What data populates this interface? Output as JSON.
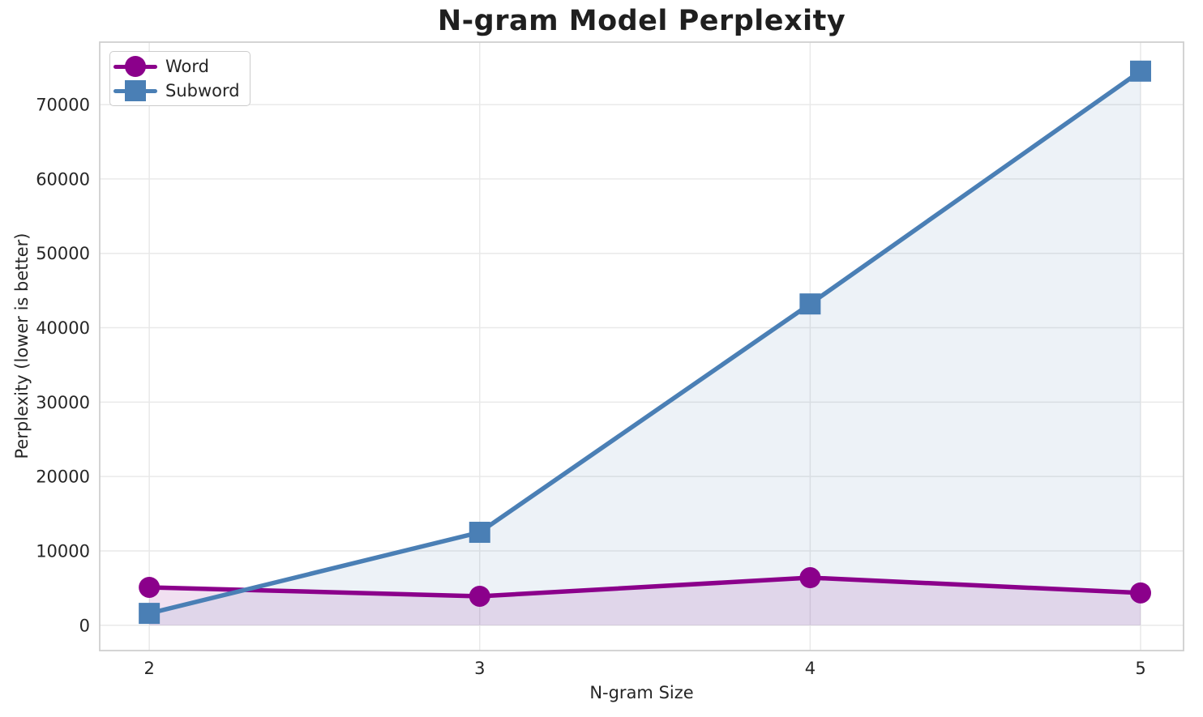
{
  "chart_data": {
    "type": "line",
    "title": "N-gram Model Perplexity",
    "xlabel": "N-gram Size",
    "ylabel": "Perplexity (lower is better)",
    "x": [
      2,
      3,
      4,
      5
    ],
    "xticks": [
      2,
      3,
      4,
      5
    ],
    "yticks": [
      0,
      10000,
      20000,
      30000,
      40000,
      50000,
      60000,
      70000
    ],
    "xlim": [
      1.85,
      5.13
    ],
    "ylim": [
      -3400,
      78400
    ],
    "grid": true,
    "fill_to_zero": true,
    "legend_position": "upper-left",
    "series": [
      {
        "name": "Word",
        "marker": "circle",
        "color": "#8B008B",
        "fill_color": "rgba(139,0,139,0.12)",
        "values": [
          5100,
          3900,
          6400,
          4350
        ]
      },
      {
        "name": "Subword",
        "marker": "square",
        "color": "#4A7FB5",
        "fill_color": "rgba(74,127,181,0.10)",
        "values": [
          1600,
          12500,
          43200,
          74500
        ]
      }
    ],
    "colors": {
      "grid": "#e9e9e9",
      "spine": "#cfcfcf",
      "text": "#262626",
      "background": "#ffffff"
    }
  }
}
